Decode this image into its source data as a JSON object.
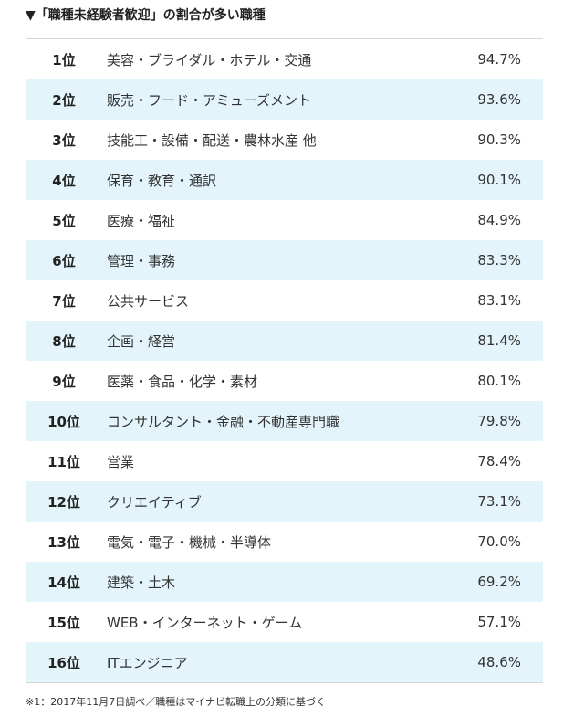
{
  "title": "▼「職種未経験者歓迎」の割合が多い職種",
  "colors": {
    "alt_row_background": "#e3f4fb",
    "border": "#d6d6d6",
    "text": "#333333"
  },
  "rows": [
    {
      "rank": "1位",
      "job": "美容・ブライダル・ホテル・交通",
      "rate": "94.7%"
    },
    {
      "rank": "2位",
      "job": "販売・フード・アミューズメント",
      "rate": "93.6%"
    },
    {
      "rank": "3位",
      "job": "技能工・設備・配送・農林水産 他",
      "rate": "90.3%"
    },
    {
      "rank": "4位",
      "job": "保育・教育・通訳",
      "rate": "90.1%"
    },
    {
      "rank": "5位",
      "job": "医療・福祉",
      "rate": "84.9%"
    },
    {
      "rank": "6位",
      "job": "管理・事務",
      "rate": "83.3%"
    },
    {
      "rank": "7位",
      "job": "公共サービス",
      "rate": "83.1%"
    },
    {
      "rank": "8位",
      "job": "企画・経営",
      "rate": "81.4%"
    },
    {
      "rank": "9位",
      "job": "医薬・食品・化学・素材",
      "rate": "80.1%"
    },
    {
      "rank": "10位",
      "job": "コンサルタント・金融・不動産専門職",
      "rate": "79.8%"
    },
    {
      "rank": "11位",
      "job": "営業",
      "rate": "78.4%"
    },
    {
      "rank": "12位",
      "job": "クリエイティブ",
      "rate": "73.1%"
    },
    {
      "rank": "13位",
      "job": "電気・電子・機械・半導体",
      "rate": "70.0%"
    },
    {
      "rank": "14位",
      "job": "建築・土木",
      "rate": "69.2%"
    },
    {
      "rank": "15位",
      "job": "WEB・インターネット・ゲーム",
      "rate": "57.1%"
    },
    {
      "rank": "16位",
      "job": "ITエンジニア",
      "rate": "48.6%"
    }
  ],
  "footnote": "※1：2017年11月7日調べ／職種はマイナビ転職上の分類に基づく"
}
